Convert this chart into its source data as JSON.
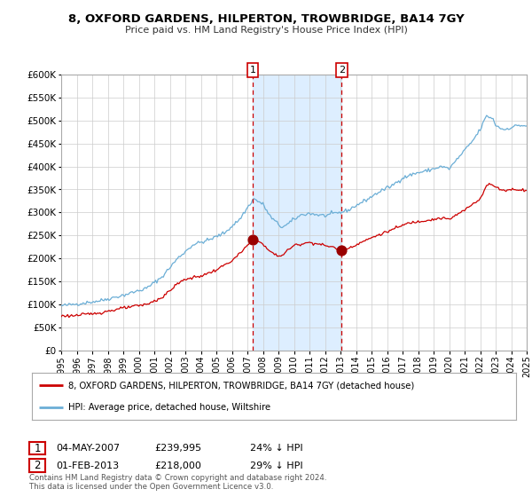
{
  "title": "8, OXFORD GARDENS, HILPERTON, TROWBRIDGE, BA14 7GY",
  "subtitle": "Price paid vs. HM Land Registry's House Price Index (HPI)",
  "legend_line1": "8, OXFORD GARDENS, HILPERTON, TROWBRIDGE, BA14 7GY (detached house)",
  "legend_line2": "HPI: Average price, detached house, Wiltshire",
  "sale1_date": "04-MAY-2007",
  "sale1_price": 239995,
  "sale1_price_str": "£239,995",
  "sale1_hpi_diff": "24% ↓ HPI",
  "sale1_x": 2007.34,
  "sale2_date": "01-FEB-2013",
  "sale2_price": 218000,
  "sale2_price_str": "£218,000",
  "sale2_hpi_diff": "29% ↓ HPI",
  "sale2_x": 2013.08,
  "footer_line1": "Contains HM Land Registry data © Crown copyright and database right 2024.",
  "footer_line2": "This data is licensed under the Open Government Licence v3.0.",
  "hpi_color": "#6baed6",
  "price_color": "#cc0000",
  "shade_color": "#ddeeff",
  "background_color": "#ffffff",
  "grid_color": "#cccccc",
  "ylim": [
    0,
    600000
  ],
  "xmin": 1995,
  "xmax": 2025,
  "hpi_key_points": [
    [
      1995.0,
      97000
    ],
    [
      1996.0,
      101000
    ],
    [
      1997.5,
      108000
    ],
    [
      1999.0,
      120000
    ],
    [
      2000.5,
      135000
    ],
    [
      2001.5,
      160000
    ],
    [
      2002.5,
      200000
    ],
    [
      2003.5,
      230000
    ],
    [
      2004.5,
      240000
    ],
    [
      2005.5,
      255000
    ],
    [
      2006.5,
      285000
    ],
    [
      2007.4,
      330000
    ],
    [
      2008.0,
      318000
    ],
    [
      2008.5,
      290000
    ],
    [
      2009.2,
      268000
    ],
    [
      2009.5,
      272000
    ],
    [
      2010.0,
      285000
    ],
    [
      2010.5,
      295000
    ],
    [
      2011.0,
      298000
    ],
    [
      2011.5,
      295000
    ],
    [
      2012.0,
      293000
    ],
    [
      2012.5,
      297000
    ],
    [
      2013.0,
      300000
    ],
    [
      2013.5,
      305000
    ],
    [
      2014.0,
      315000
    ],
    [
      2014.8,
      330000
    ],
    [
      2015.5,
      345000
    ],
    [
      2016.3,
      358000
    ],
    [
      2017.0,
      375000
    ],
    [
      2017.8,
      385000
    ],
    [
      2018.5,
      390000
    ],
    [
      2019.0,
      395000
    ],
    [
      2019.5,
      400000
    ],
    [
      2020.0,
      395000
    ],
    [
      2020.5,
      415000
    ],
    [
      2021.0,
      435000
    ],
    [
      2021.5,
      455000
    ],
    [
      2022.0,
      480000
    ],
    [
      2022.4,
      510000
    ],
    [
      2022.8,
      505000
    ],
    [
      2023.0,
      490000
    ],
    [
      2023.5,
      480000
    ],
    [
      2024.0,
      485000
    ],
    [
      2024.5,
      490000
    ],
    [
      2024.9,
      488000
    ]
  ],
  "pp_key_points": [
    [
      1995.0,
      75000
    ],
    [
      1996.0,
      76000
    ],
    [
      1997.5,
      82000
    ],
    [
      1999.0,
      92000
    ],
    [
      2000.5,
      100000
    ],
    [
      2001.5,
      115000
    ],
    [
      2002.5,
      145000
    ],
    [
      2003.0,
      155000
    ],
    [
      2003.5,
      158000
    ],
    [
      2004.0,
      162000
    ],
    [
      2004.5,
      168000
    ],
    [
      2005.0,
      175000
    ],
    [
      2005.5,
      185000
    ],
    [
      2006.0,
      195000
    ],
    [
      2006.5,
      210000
    ],
    [
      2007.0,
      228000
    ],
    [
      2007.34,
      239995
    ],
    [
      2007.6,
      242000
    ],
    [
      2007.8,
      238000
    ],
    [
      2008.0,
      230000
    ],
    [
      2008.3,
      220000
    ],
    [
      2008.6,
      212000
    ],
    [
      2009.0,
      205000
    ],
    [
      2009.3,
      208000
    ],
    [
      2009.6,
      218000
    ],
    [
      2010.0,
      228000
    ],
    [
      2010.5,
      232000
    ],
    [
      2011.0,
      235000
    ],
    [
      2011.5,
      232000
    ],
    [
      2012.0,
      228000
    ],
    [
      2012.5,
      225000
    ],
    [
      2013.08,
      218000
    ],
    [
      2013.5,
      222000
    ],
    [
      2014.0,
      230000
    ],
    [
      2014.8,
      242000
    ],
    [
      2015.5,
      252000
    ],
    [
      2016.0,
      258000
    ],
    [
      2016.5,
      265000
    ],
    [
      2017.0,
      272000
    ],
    [
      2017.5,
      278000
    ],
    [
      2018.0,
      280000
    ],
    [
      2018.5,
      283000
    ],
    [
      2019.0,
      285000
    ],
    [
      2019.5,
      288000
    ],
    [
      2020.0,
      285000
    ],
    [
      2020.5,
      295000
    ],
    [
      2021.0,
      305000
    ],
    [
      2021.5,
      318000
    ],
    [
      2022.0,
      330000
    ],
    [
      2022.4,
      358000
    ],
    [
      2022.7,
      362000
    ],
    [
      2023.0,
      355000
    ],
    [
      2023.5,
      348000
    ],
    [
      2024.0,
      350000
    ],
    [
      2024.5,
      350000
    ],
    [
      2024.9,
      348000
    ]
  ]
}
